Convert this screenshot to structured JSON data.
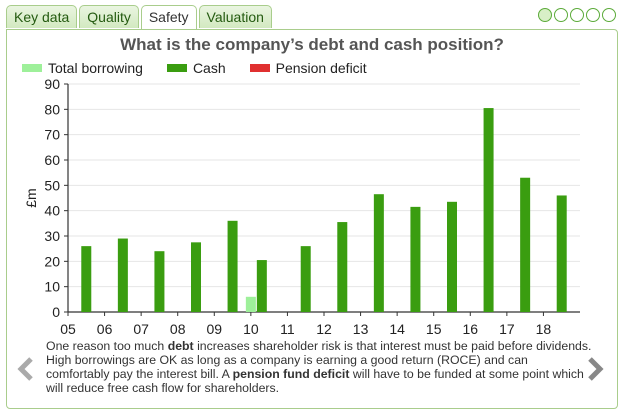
{
  "tabs": [
    {
      "label": "Key data",
      "active": false
    },
    {
      "label": "Quality",
      "active": false
    },
    {
      "label": "Safety",
      "active": true
    },
    {
      "label": "Valuation",
      "active": false
    }
  ],
  "pager": {
    "total": 5,
    "current": 1
  },
  "chart_data": {
    "type": "bar",
    "title": "What is the company’s debt and cash position?",
    "ylabel": "£m",
    "ylim": [
      0,
      90
    ],
    "yticks": [
      0,
      10,
      20,
      30,
      40,
      50,
      60,
      70,
      80,
      90
    ],
    "x_labels": [
      "05",
      "06",
      "07",
      "08",
      "09",
      "10",
      "11",
      "12",
      "13",
      "14",
      "15",
      "16",
      "17",
      "18"
    ],
    "legend": [
      {
        "name": "Total borrowing",
        "color": "#9ef09a"
      },
      {
        "name": "Cash",
        "color": "#3a9d10"
      },
      {
        "name": "Pension deficit",
        "color": "#e03030"
      }
    ],
    "series": [
      {
        "name": "Total borrowing",
        "color": "#9ef09a",
        "points": [
          {
            "x": 10.0,
            "value": 6
          }
        ]
      },
      {
        "name": "Cash",
        "color": "#3a9d10",
        "points": [
          {
            "x": 5.5,
            "value": 26
          },
          {
            "x": 6.5,
            "value": 29
          },
          {
            "x": 7.5,
            "value": 24
          },
          {
            "x": 8.5,
            "value": 27.5
          },
          {
            "x": 9.5,
            "value": 36
          },
          {
            "x": 10.3,
            "value": 20.5
          },
          {
            "x": 11.5,
            "value": 26
          },
          {
            "x": 12.5,
            "value": 35.5
          },
          {
            "x": 13.5,
            "value": 46.5
          },
          {
            "x": 14.5,
            "value": 41.5
          },
          {
            "x": 15.5,
            "value": 43.5
          },
          {
            "x": 16.5,
            "value": 80.5
          },
          {
            "x": 17.5,
            "value": 53
          },
          {
            "x": 18.5,
            "value": 46
          }
        ]
      },
      {
        "name": "Pension deficit",
        "color": "#e03030",
        "points": []
      }
    ]
  },
  "description": {
    "p1": "One reason too much ",
    "b1": "debt",
    "p2": " increases shareholder risk is that interest must be paid before dividends. High borrowings are OK as long as a company is earning a good return (ROCE) and can comfortably pay the interest bill. A ",
    "b2": "pension fund deficit",
    "p3": " will have to be funded at some point which will reduce free cash flow for shareholders."
  },
  "nav": {
    "prev_icon": "chevron-left-icon",
    "next_icon": "chevron-right-icon"
  }
}
